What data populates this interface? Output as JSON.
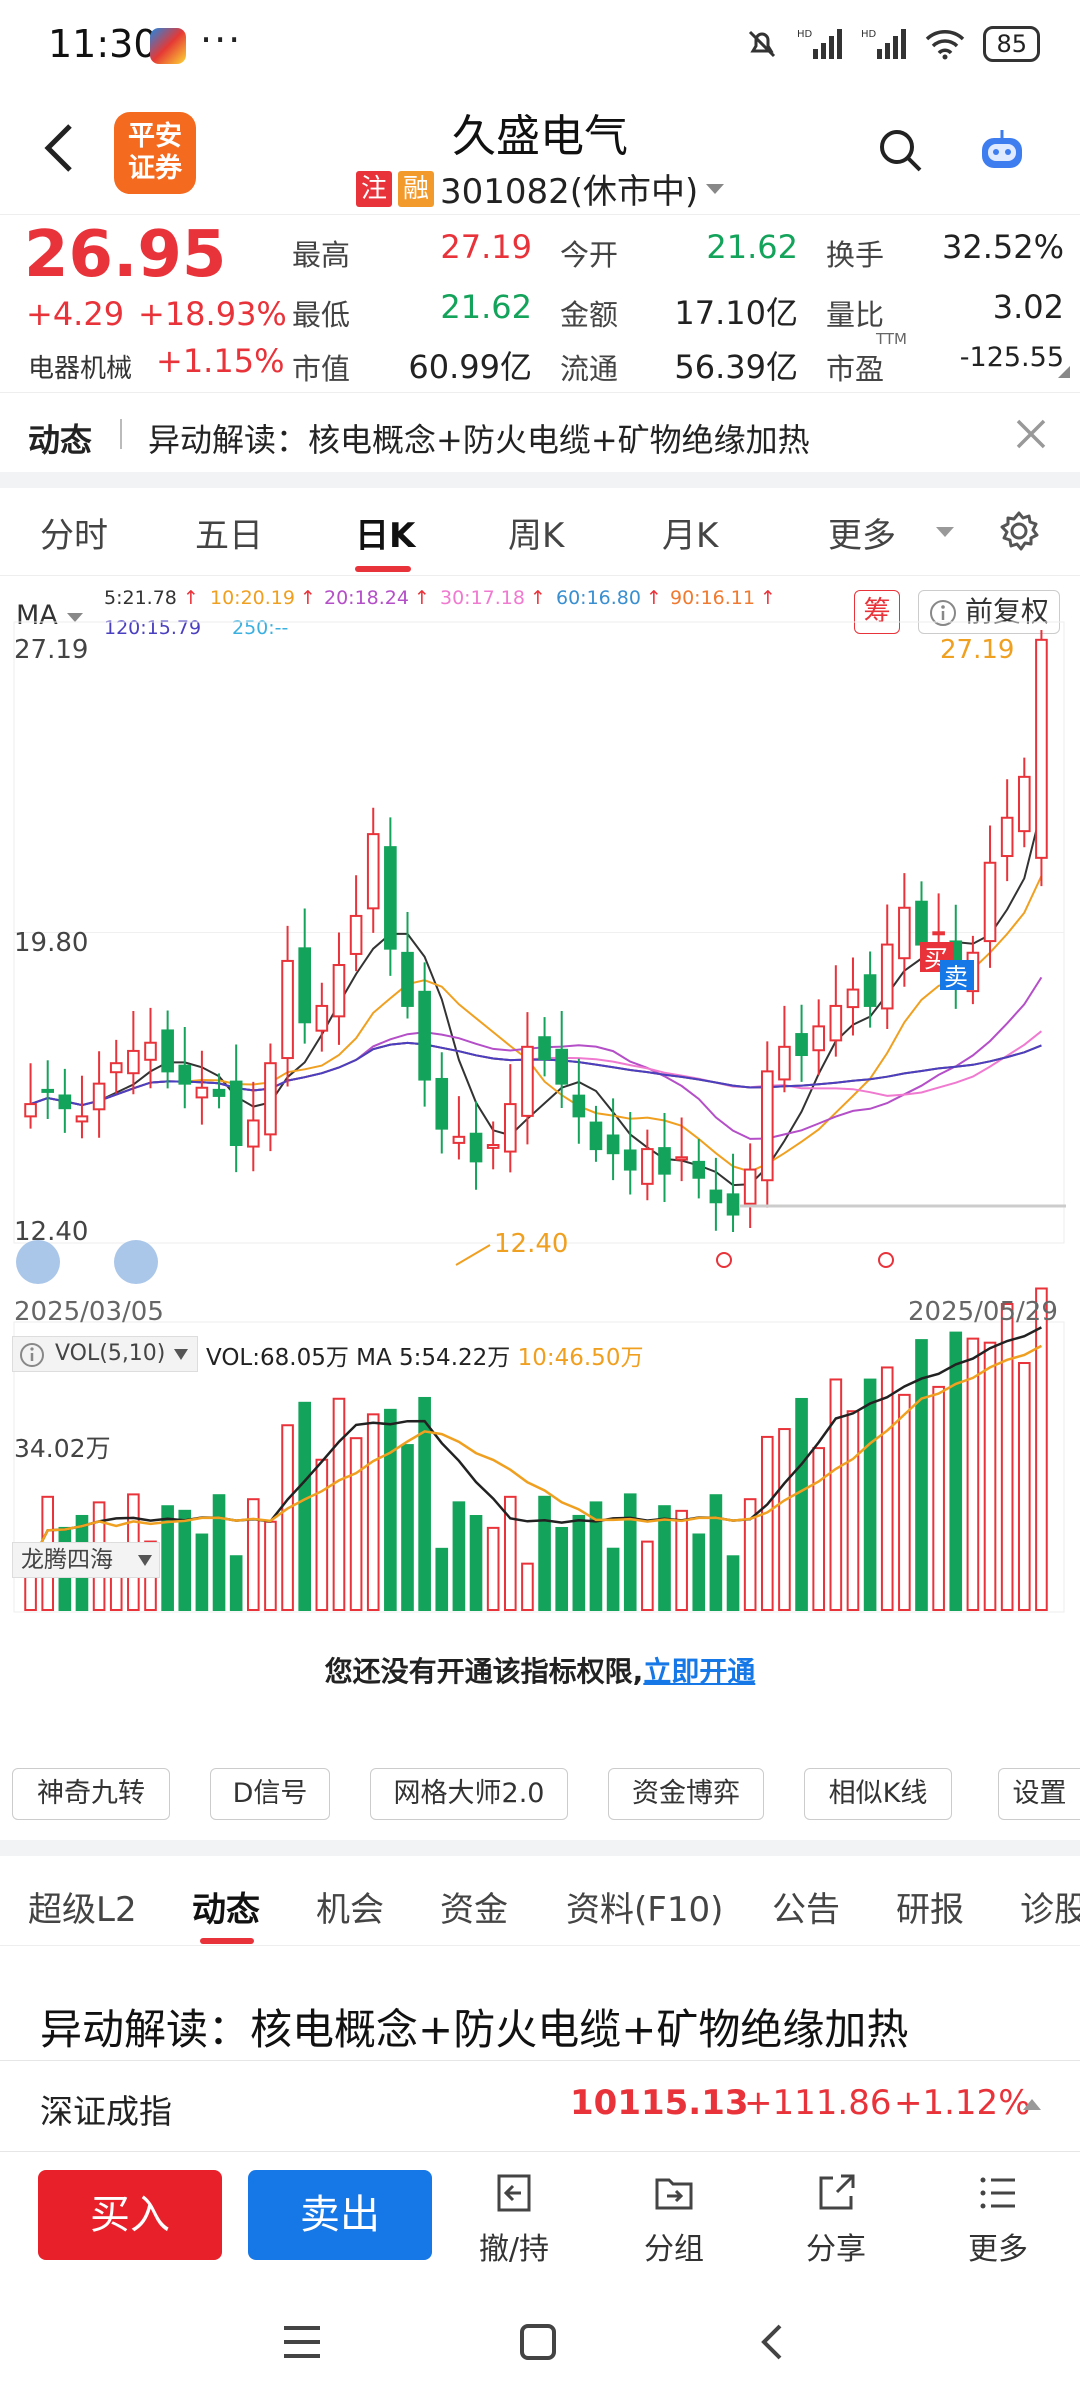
{
  "status_bar": {
    "time": "11:30",
    "dots": "···",
    "battery": "85"
  },
  "header": {
    "title": "久盛电气",
    "logo_line1": "平安",
    "logo_line2": "证券",
    "tag_zhu": "注",
    "tag_rong": "融",
    "code_status": "301082(休市中)"
  },
  "quote": {
    "price": "26.95",
    "change": "+4.29",
    "change_pct": "+18.93%",
    "sector": "电器机械",
    "sector_change": "+1.15%",
    "cells": [
      {
        "label": "最高",
        "value": "27.19",
        "color": "red"
      },
      {
        "label": "今开",
        "value": "21.62",
        "color": "green"
      },
      {
        "label": "换手",
        "value": "32.52%",
        "color": "dark"
      },
      {
        "label": "最低",
        "value": "21.62",
        "color": "green"
      },
      {
        "label": "金额",
        "value": "17.10亿",
        "color": "dark"
      },
      {
        "label": "量比",
        "value": "3.02",
        "color": "dark"
      },
      {
        "label": "市值",
        "value": "60.99亿",
        "color": "dark"
      },
      {
        "label": "流通",
        "value": "56.39亿",
        "color": "dark"
      },
      {
        "label": "市盈",
        "value": "-125.55",
        "color": "dark"
      }
    ],
    "pe_sup": "TTM"
  },
  "news": {
    "label": "动态",
    "text": "异动解读：核电概念+防火电缆+矿物绝缘加热"
  },
  "period_tabs": [
    "分时",
    "五日",
    "日K",
    "周K",
    "月K",
    "更多"
  ],
  "active_period": "日K",
  "ma_legend": {
    "selector": "MA",
    "items": [
      {
        "text": "5:21.78",
        "color": "#333333"
      },
      {
        "text": "10:20.19",
        "color": "#f0a020"
      },
      {
        "text": "20:18.24",
        "color": "#b44fc8"
      },
      {
        "text": "30:17.18",
        "color": "#f07ad0"
      },
      {
        "text": "60:16.80",
        "color": "#3a8fd0"
      },
      {
        "text": "90:16.11",
        "color": "#f07a30"
      },
      {
        "text": "120:15.79",
        "color": "#4a3fc0"
      },
      {
        "text": "250:--",
        "color": "#3ab0e0"
      }
    ]
  },
  "chart_controls": {
    "chip": "筹",
    "adjust": "前复权"
  },
  "kline": {
    "price_high_label": "27.19",
    "price_mid_label": "19.80",
    "price_low_label": "12.40",
    "high_marker": "27.19",
    "low_marker": "12.40",
    "date_start": "2025/03/05",
    "date_end": "2025/05/29",
    "buy_mark": "买",
    "sell_mark": "卖"
  },
  "volume": {
    "selector": "VOL(5,10)",
    "vol": "VOL:68.05万",
    "ma5": "MA 5:54.22万",
    "ma10": "10:46.50万",
    "axis_label": "34.02万"
  },
  "indicator": {
    "name": "龙腾四海",
    "locked_text": "您还没有开通该指标权限,",
    "locked_link": "立即开通"
  },
  "tools": [
    "神奇九转",
    "D信号",
    "网格大师2.0",
    "资金博弈",
    "相似K线",
    "设置"
  ],
  "bottom_tabs": [
    "超级L2",
    "动态",
    "机会",
    "资金",
    "资料(F10)",
    "公告",
    "研报",
    "诊股"
  ],
  "active_bottom_tab": "动态",
  "article_title": "异动解读：核电概念+防火电缆+矿物绝缘加热",
  "index_bar": {
    "name": "深证成指",
    "value": "10115.13",
    "change": "+111.86",
    "pct": "+1.12%"
  },
  "actions": {
    "buy": "买入",
    "sell": "卖出",
    "items": [
      "撤/持",
      "分组",
      "分享",
      "更多"
    ]
  },
  "colors": {
    "up": "#e8333a",
    "down": "#14a35a",
    "buy_btn": "#e8202a",
    "sell_btn": "#1677e6",
    "link": "#1677e6"
  },
  "chart_data": {
    "type": "candlestick",
    "date_range": [
      "2025/03/05",
      "2025/05/29"
    ],
    "ylim": [
      12.4,
      27.19
    ],
    "last_close": 26.95,
    "visible_high": 27.19,
    "visible_low": 12.4
  }
}
